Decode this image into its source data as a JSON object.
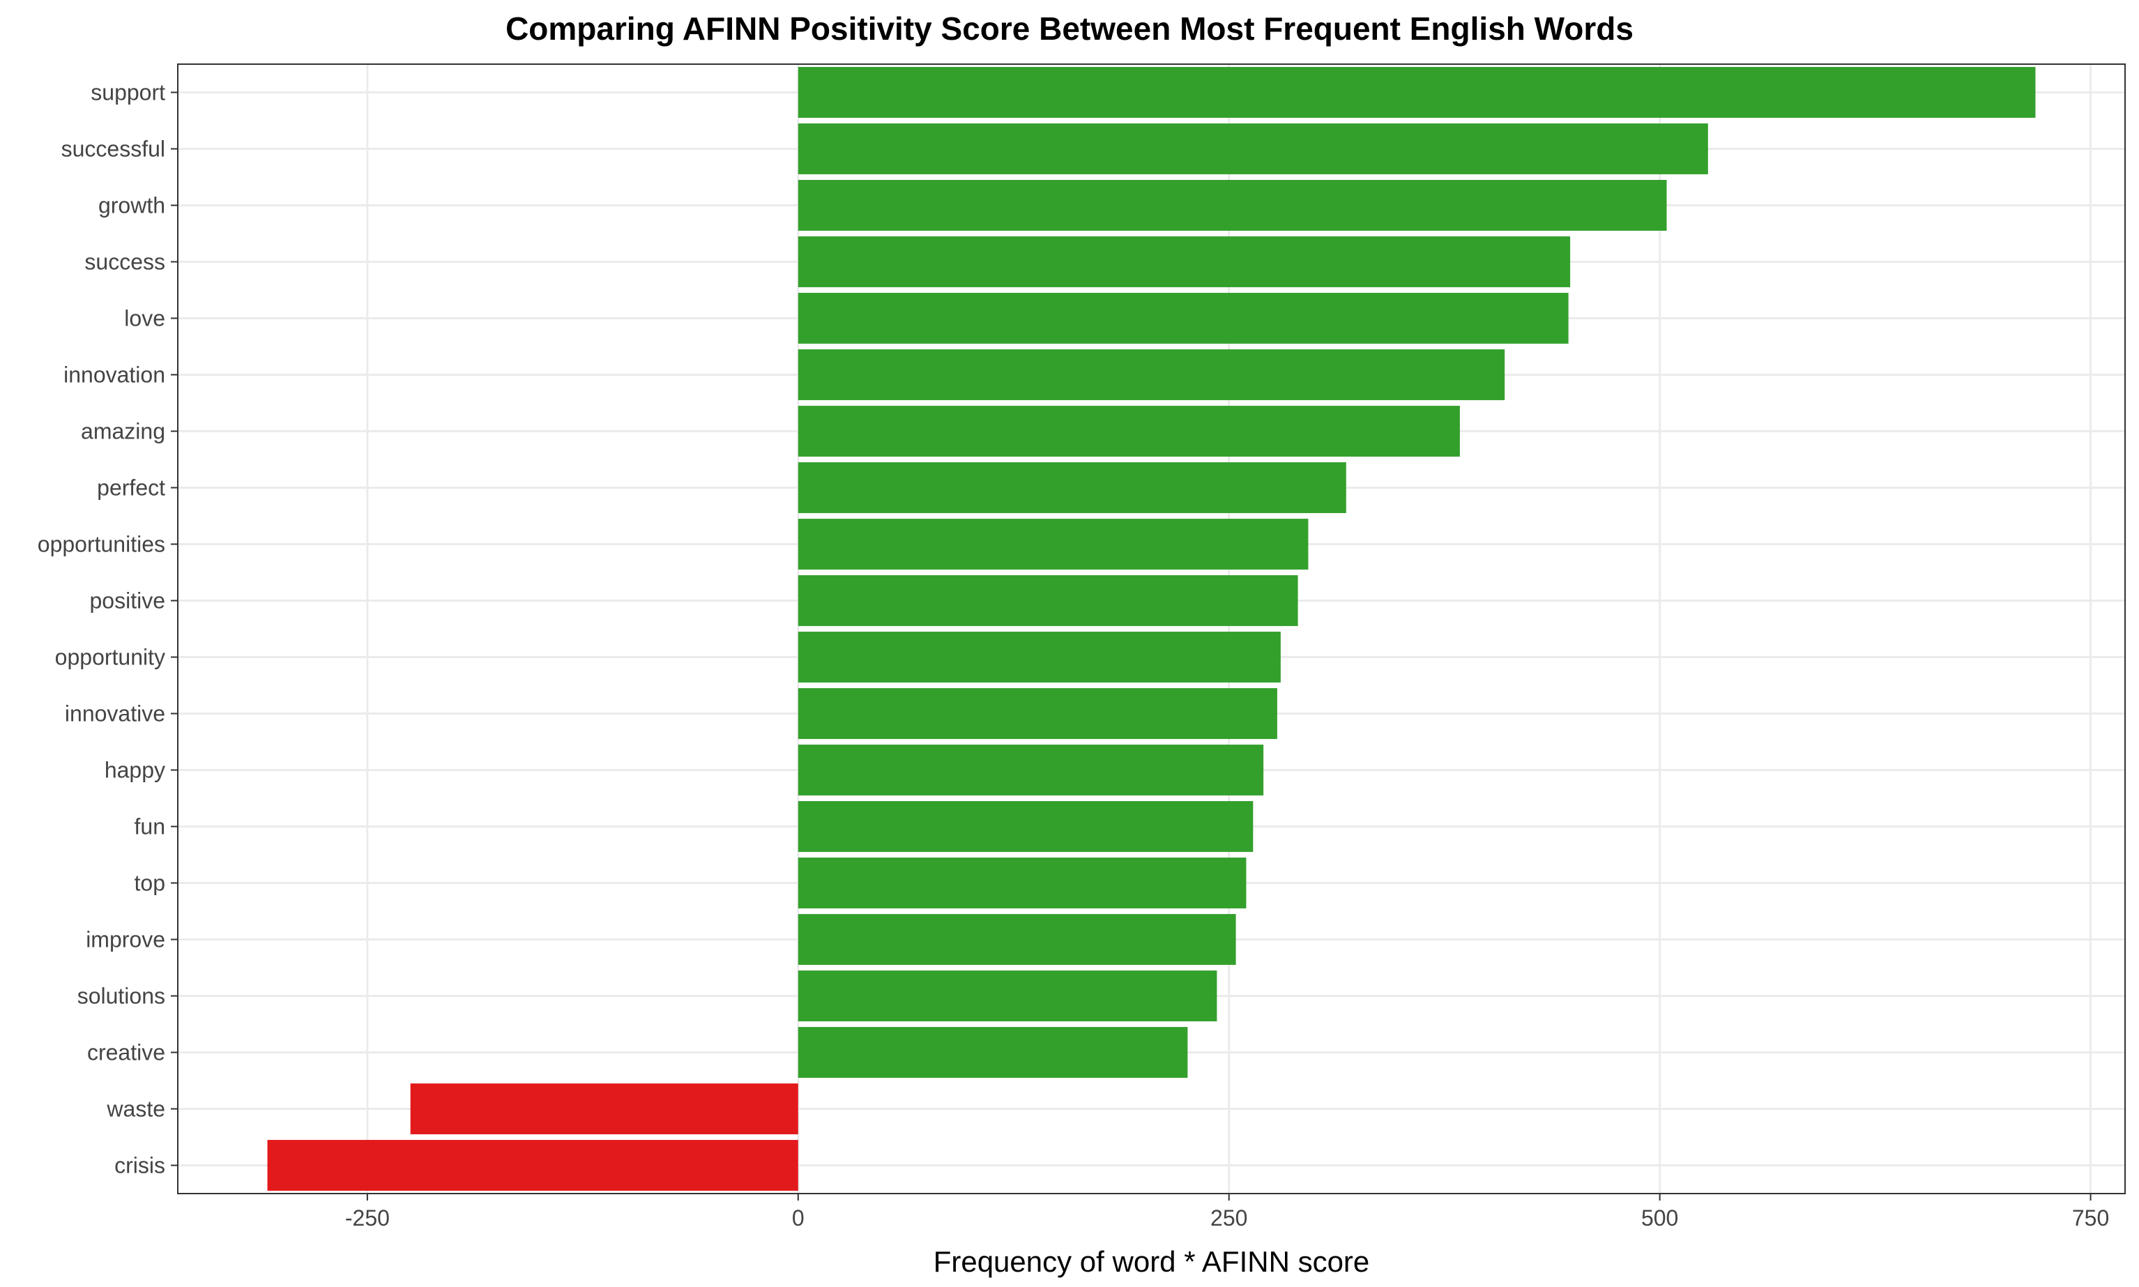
{
  "chart_data": {
    "type": "bar",
    "orientation": "horizontal",
    "title": "Comparing AFINN Positivity Score Between Most Frequent English Words",
    "xlabel": "Frequency of word * AFINN score",
    "ylabel": "",
    "xlim": [
      -360,
      770
    ],
    "xticks": [
      -250,
      0,
      250,
      500,
      750
    ],
    "xtick_labels": [
      "-250",
      "0",
      "250",
      "500",
      "750"
    ],
    "grid": true,
    "colors": {
      "positive": "#33a02c",
      "negative": "#e31a1c",
      "grid": "#ebebeb",
      "panel_border": "#333333"
    },
    "categories": [
      "support",
      "successful",
      "growth",
      "success",
      "love",
      "innovation",
      "amazing",
      "perfect",
      "opportunities",
      "positive",
      "opportunity",
      "innovative",
      "happy",
      "fun",
      "top",
      "improve",
      "solutions",
      "creative",
      "waste",
      "crisis"
    ],
    "values": [
      718,
      528,
      504,
      448,
      447,
      410,
      384,
      318,
      296,
      290,
      280,
      278,
      270,
      264,
      260,
      254,
      243,
      226,
      -225,
      -308
    ]
  }
}
